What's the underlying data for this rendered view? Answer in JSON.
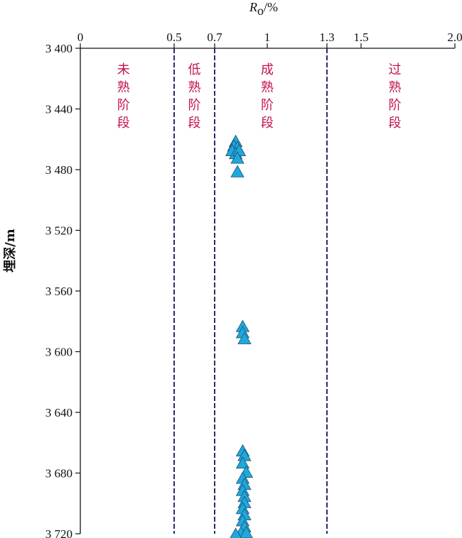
{
  "chart_data": {
    "type": "scatter",
    "x_axis": {
      "title_italic": "R",
      "title_sub": "o",
      "title_unit": "/%",
      "position": "top",
      "ticks": [
        {
          "value": 0,
          "label": "0"
        },
        {
          "value": 0.5,
          "label": "0.5"
        },
        {
          "value": 0.7,
          "label": "0.7"
        },
        {
          "value": 1,
          "label": "1"
        },
        {
          "value": 1.3,
          "label": "1.3"
        },
        {
          "value": 1.5,
          "label": "1.5"
        },
        {
          "value": 2.0,
          "label": "2.0"
        }
      ],
      "range": [
        0,
        2.0
      ]
    },
    "y_axis": {
      "label": "埋深/m",
      "inverted": true,
      "ticks": [
        {
          "value": 3400,
          "label": "3 400"
        },
        {
          "value": 3440,
          "label": "3 440"
        },
        {
          "value": 3480,
          "label": "3 480"
        },
        {
          "value": 3520,
          "label": "3 520"
        },
        {
          "value": 3560,
          "label": "3 560"
        },
        {
          "value": 3600,
          "label": "3 600"
        },
        {
          "value": 3640,
          "label": "3 640"
        },
        {
          "value": 3680,
          "label": "3 680"
        },
        {
          "value": 3720,
          "label": "3 720"
        }
      ],
      "range": [
        3400,
        3720
      ]
    },
    "thresholds": [
      0.5,
      0.7,
      1.3
    ],
    "threshold_color": "#2e2a6e",
    "zones": [
      {
        "label": "未熟阶段",
        "x": 0.23
      },
      {
        "label": "低熟阶段",
        "x": 0.6
      },
      {
        "label": "成熟阶段",
        "x": 1.0
      },
      {
        "label": "过熟阶段",
        "x": 1.68
      }
    ],
    "zone_color": "#c3134f",
    "marker": "triangle",
    "marker_color": "#1fa8dc",
    "points": [
      {
        "x": 0.82,
        "y": 3462
      },
      {
        "x": 0.81,
        "y": 3465
      },
      {
        "x": 0.83,
        "y": 3466
      },
      {
        "x": 0.8,
        "y": 3468
      },
      {
        "x": 0.82,
        "y": 3470
      },
      {
        "x": 0.84,
        "y": 3468
      },
      {
        "x": 0.83,
        "y": 3473
      },
      {
        "x": 0.83,
        "y": 3482
      },
      {
        "x": 0.86,
        "y": 3584
      },
      {
        "x": 0.86,
        "y": 3588
      },
      {
        "x": 0.87,
        "y": 3592
      },
      {
        "x": 0.86,
        "y": 3666
      },
      {
        "x": 0.87,
        "y": 3669
      },
      {
        "x": 0.86,
        "y": 3674
      },
      {
        "x": 0.88,
        "y": 3680
      },
      {
        "x": 0.86,
        "y": 3684
      },
      {
        "x": 0.87,
        "y": 3688
      },
      {
        "x": 0.86,
        "y": 3692
      },
      {
        "x": 0.87,
        "y": 3696
      },
      {
        "x": 0.87,
        "y": 3700
      },
      {
        "x": 0.86,
        "y": 3704
      },
      {
        "x": 0.87,
        "y": 3708
      },
      {
        "x": 0.86,
        "y": 3712
      },
      {
        "x": 0.87,
        "y": 3716
      },
      {
        "x": 0.85,
        "y": 3720
      },
      {
        "x": 0.88,
        "y": 3720
      },
      {
        "x": 0.82,
        "y": 3721
      }
    ]
  }
}
